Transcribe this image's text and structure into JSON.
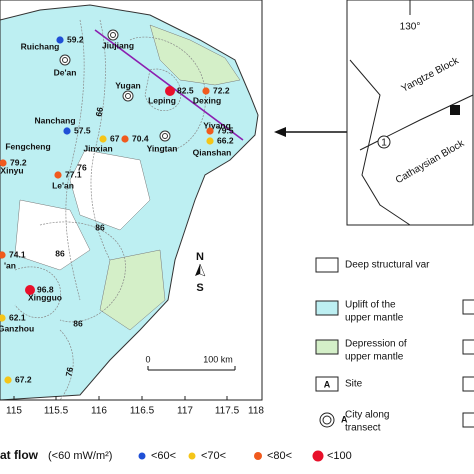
{
  "map": {
    "lon_ticks": [
      115,
      115.5,
      116,
      116.5,
      117,
      117.5,
      118
    ],
    "cities": [
      "Ruichang",
      "Jiujiang",
      "De'an",
      "Yugan",
      "Leping",
      "Dexing",
      "Nanchang",
      "Fengcheng",
      "Jinxian",
      "Yiyang",
      "Yingtan",
      "Qianshan",
      "Xinyu",
      "Le'an",
      "'an",
      "Xingguo",
      "Ganzhou"
    ],
    "heat_flow": [
      59.2,
      82.5,
      72.2,
      57.5,
      67,
      70.4,
      79.5,
      66.2,
      79.2,
      77.1,
      74.1,
      96.8,
      62.1,
      67.2
    ],
    "contour_labels": [
      66,
      76,
      86,
      86,
      86,
      76
    ],
    "scale_start": 0,
    "scale_end": "100 km",
    "north": "N",
    "south": "S"
  },
  "inset": {
    "lon": "130°",
    "blocks": [
      "Yangtze Block",
      "Cathaysian Block"
    ],
    "fault": "1"
  },
  "legend": {
    "items": [
      [
        "Deep structural var"
      ],
      [
        "Uplift of the",
        "upper mantle"
      ],
      [
        "Depression of",
        "upper mantle"
      ],
      [
        "Site"
      ],
      [
        "City along",
        "transect"
      ]
    ],
    "site_symbol": "A",
    "city_symbol": "A"
  },
  "heat_flow_legend": {
    "title": "at flow",
    "unit": "(<60 mW/m²)",
    "classes": [
      "<60<",
      "<70<",
      "<80<",
      "<100"
    ]
  }
}
